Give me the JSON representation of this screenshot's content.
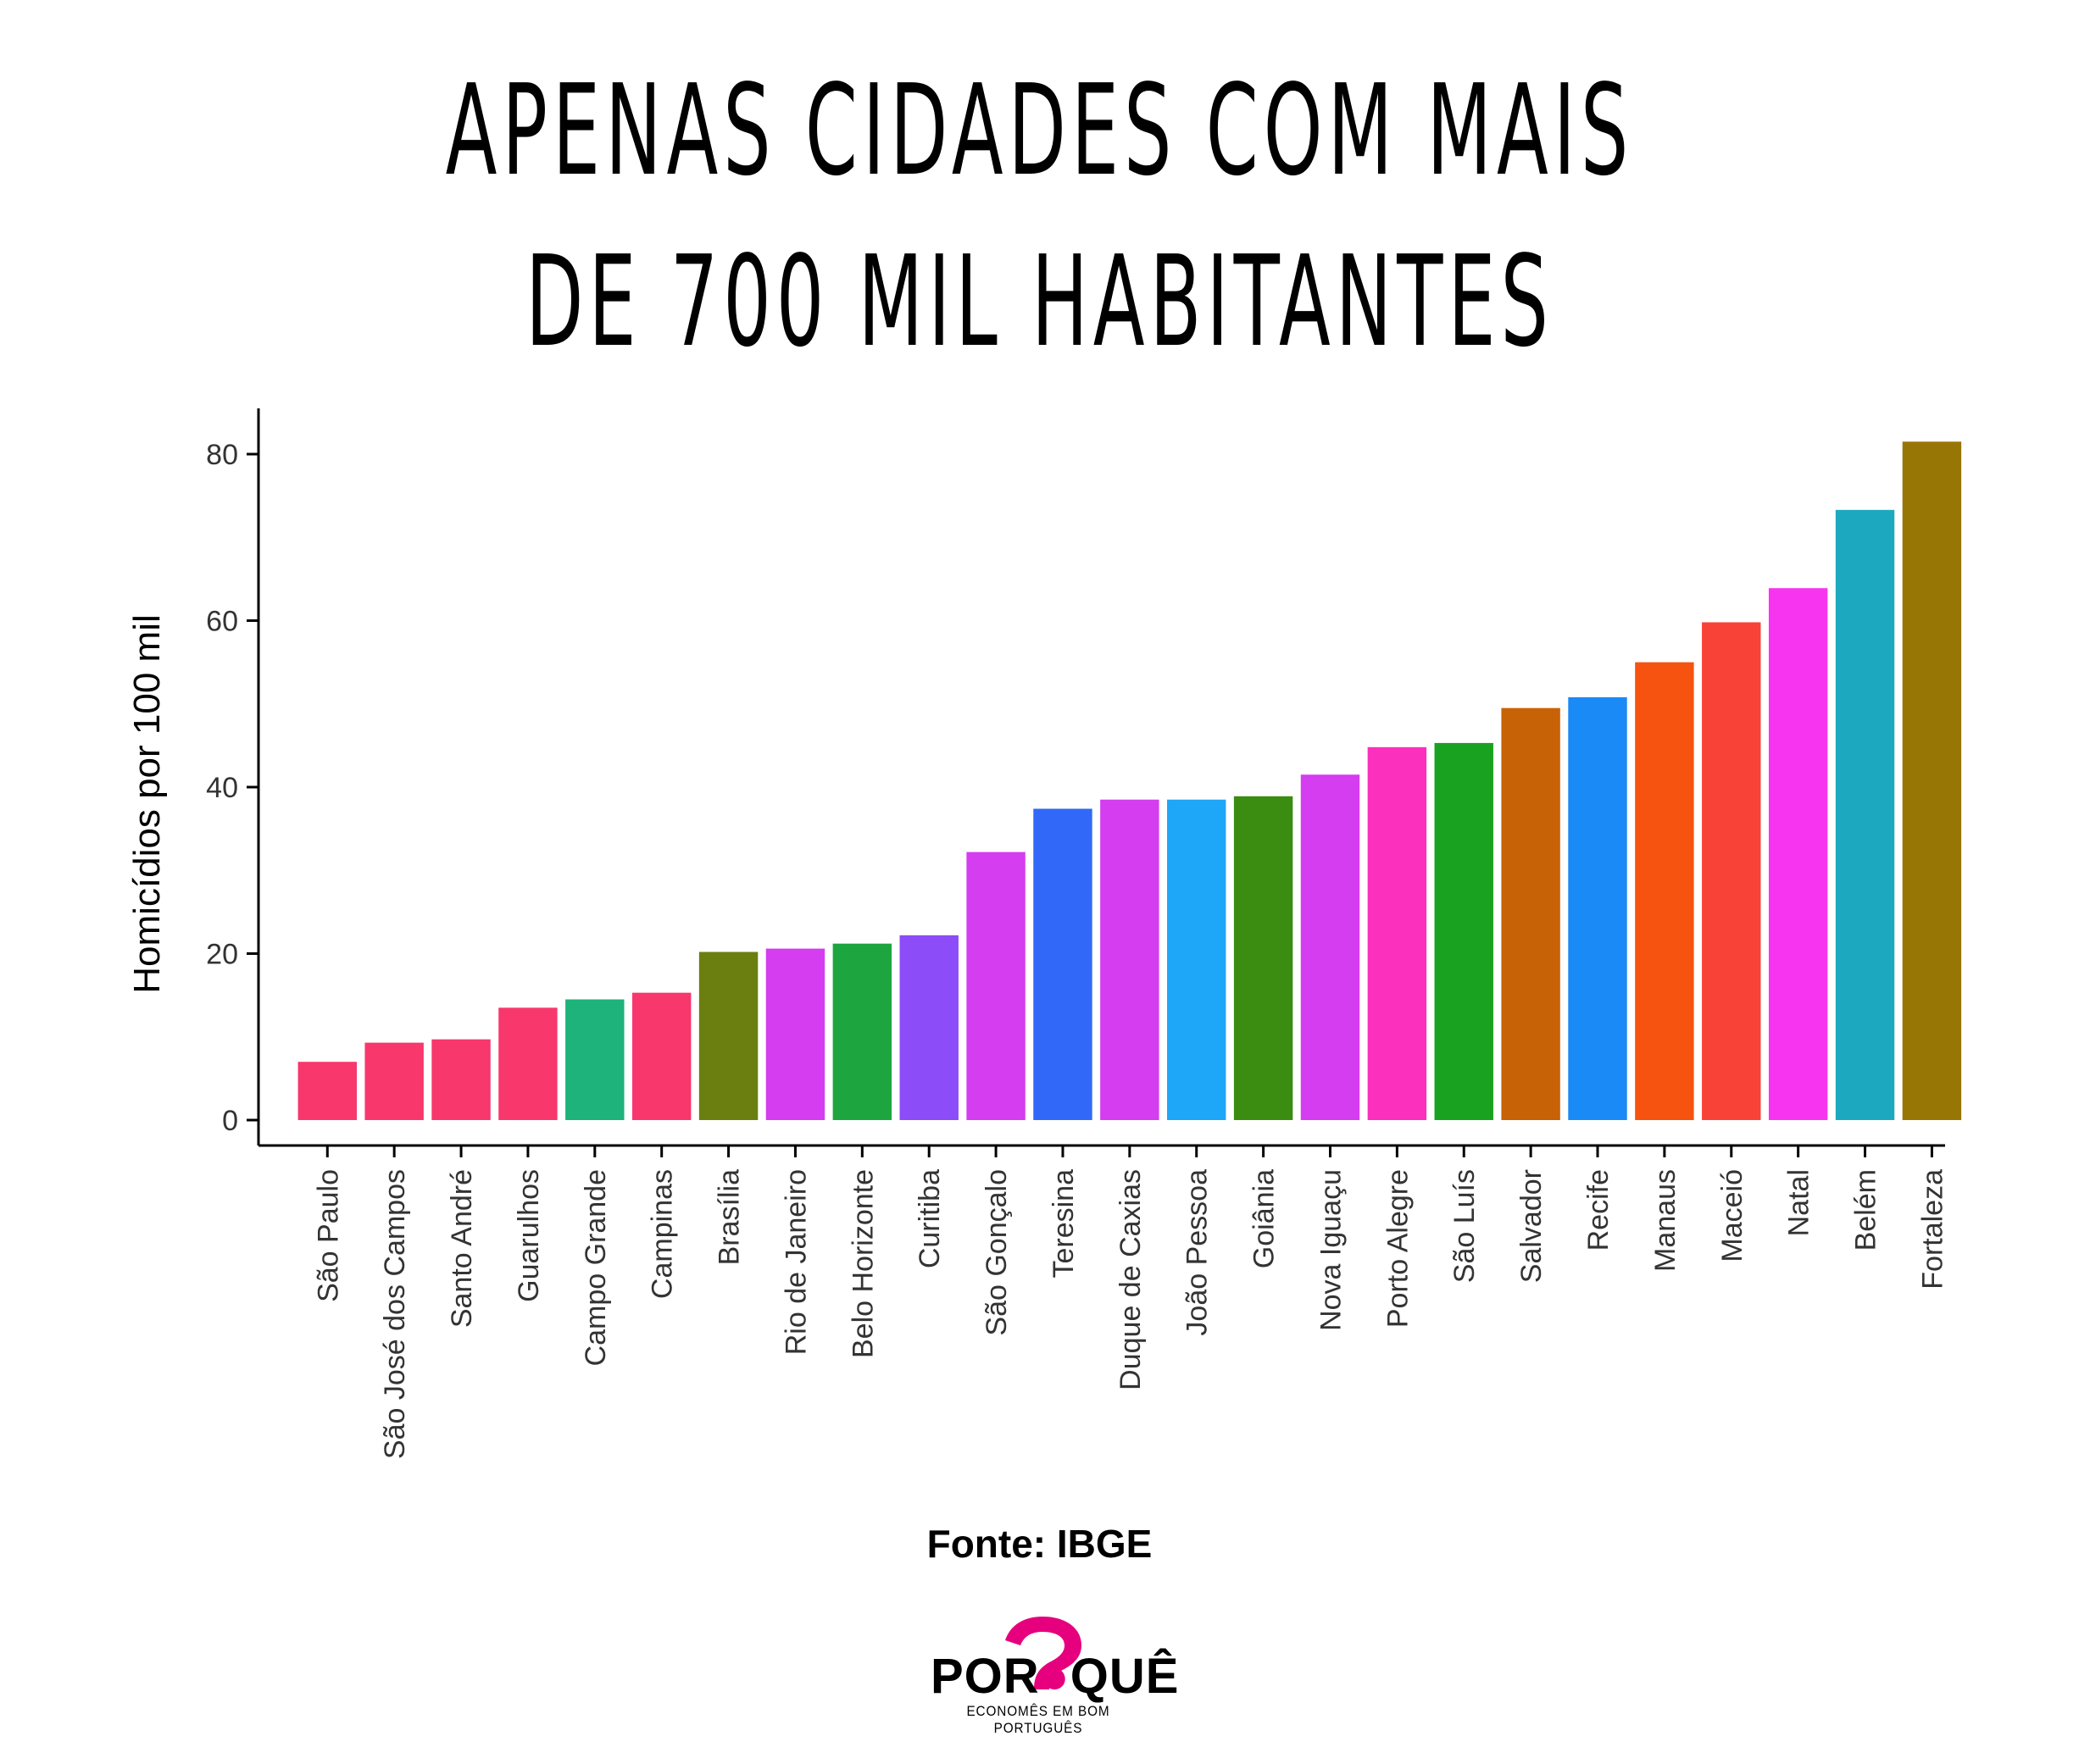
{
  "header": {
    "title_line1": "APENAS CIDADES COM MAIS",
    "title_line2": "DE 700 MIL HABITANTES"
  },
  "footer": {
    "source": "Fonte: IBGE",
    "logo_left": "POR",
    "logo_right": "QUÊ",
    "logo_tagline": "ECONOMÊS EM BOM PORTUGUÊS"
  },
  "chart_data": {
    "type": "bar",
    "title": "APENAS CIDADES COM MAIS DE 700 MIL HABITANTES",
    "xlabel": "",
    "ylabel": "Homicídios por 100 mil",
    "ylim": [
      0,
      85
    ],
    "yticks": [
      0,
      20,
      40,
      60,
      80
    ],
    "legend": "none",
    "grid": false,
    "categories": [
      "São Paulo",
      "São José dos Campos",
      "Santo André",
      "Guarulhos",
      "Campo Grande",
      "Campinas",
      "Brasília",
      "Rio de Janeiro",
      "Belo Horizonte",
      "Curitiba",
      "São Gonçalo",
      "Teresina",
      "Duque de Caxias",
      "João Pessoa",
      "Goiânia",
      "Nova Iguaçu",
      "Porto Alegre",
      "São Luís",
      "Salvador",
      "Recife",
      "Manaus",
      "Maceió",
      "Natal",
      "Belém",
      "Fortaleza"
    ],
    "values": [
      7,
      9.3,
      9.7,
      13.5,
      14.5,
      15.3,
      20.2,
      20.6,
      21.2,
      22.2,
      32.2,
      37.4,
      38.5,
      38.5,
      38.9,
      41.5,
      44.8,
      45.3,
      49.5,
      50.8,
      55,
      59.8,
      63.9,
      73.3,
      81.5
    ],
    "colors": [
      "#f8376d",
      "#f8376d",
      "#f8376d",
      "#f8376d",
      "#1db37a",
      "#f8376d",
      "#6a7f10",
      "#d43df0",
      "#1da640",
      "#8c4cf7",
      "#d43df0",
      "#3168f8",
      "#d43df0",
      "#1ea6f8",
      "#3a8d10",
      "#d43df0",
      "#fb30bd",
      "#19a21f",
      "#c86206",
      "#1a8af6",
      "#f5530f",
      "#f94237",
      "#f734f0",
      "#1ca9bf",
      "#987605"
    ]
  }
}
